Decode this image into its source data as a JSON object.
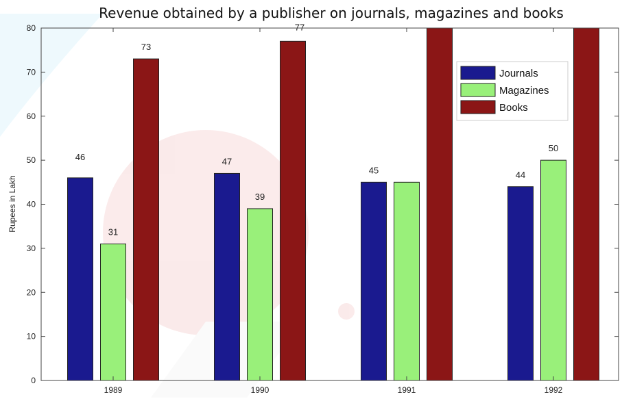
{
  "chart_data": {
    "type": "bar",
    "title": "Revenue obtained by a publisher on journals, magazines and books",
    "xlabel": "",
    "ylabel": "Rupees in Lakh",
    "categories": [
      "1989",
      "1990",
      "1991",
      "1992"
    ],
    "series": [
      {
        "name": "Journals",
        "color": "#1a1a8f",
        "values": [
          46,
          47,
          45,
          44
        ],
        "labels": [
          "46",
          "47",
          "45",
          "44"
        ]
      },
      {
        "name": "Magazines",
        "color": "#99f07a",
        "values": [
          31,
          39,
          45,
          50
        ],
        "labels": [
          "31",
          "39",
          "",
          "50"
        ]
      },
      {
        "name": "Books",
        "color": "#8b1616",
        "values": [
          73,
          77,
          80,
          80
        ],
        "labels": [
          "73",
          "77",
          "",
          ""
        ]
      }
    ],
    "ylim": [
      0,
      80
    ],
    "yticks": [
      "0",
      "10",
      "20",
      "30",
      "40",
      "50",
      "60",
      "70",
      "80"
    ],
    "grid": false,
    "legend_position": "top-right"
  }
}
